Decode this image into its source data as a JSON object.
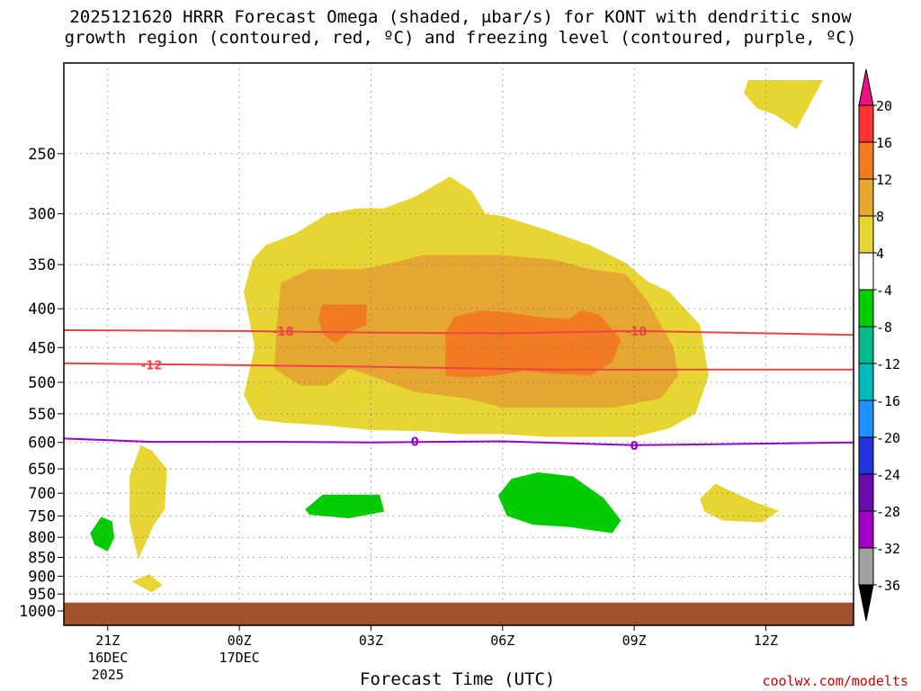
{
  "title": {
    "line1": "2025121620 HRRR Forecast Omega (shaded, μbar/s) for KONT with dendritic snow",
    "line2": "growth region (contoured, red, ºC) and freezing level (contoured, purple, ºC)"
  },
  "credit": "coolwx.com/modelts",
  "chart_data": {
    "type": "time-height cross section",
    "xlabel": "Forecast Time (UTC)",
    "x_ticks": [
      {
        "hour": 1,
        "label": "21Z",
        "sub1": "16DEC",
        "sub2": "2025"
      },
      {
        "hour": 4,
        "label": "00Z",
        "sub1": "17DEC",
        "sub2": ""
      },
      {
        "hour": 7,
        "label": "03Z",
        "sub1": "",
        "sub2": ""
      },
      {
        "hour": 10,
        "label": "06Z",
        "sub1": "",
        "sub2": ""
      },
      {
        "hour": 13,
        "label": "09Z",
        "sub1": "",
        "sub2": ""
      },
      {
        "hour": 16,
        "label": "12Z",
        "sub1": "",
        "sub2": ""
      }
    ],
    "x_range_hours": [
      0,
      18
    ],
    "y_axis": {
      "type": "log-pressure",
      "unit": "hPa",
      "range": [
        1000,
        200
      ]
    },
    "y_ticks": [
      250,
      300,
      350,
      400,
      450,
      500,
      550,
      600,
      650,
      700,
      750,
      800,
      850,
      900,
      950,
      1000
    ],
    "ground_level_hPa": 975,
    "ground_color": "#a0522d",
    "omega_legend": {
      "labels": [
        "20",
        "16",
        "12",
        "8",
        "4",
        "-4",
        "-8",
        "-12",
        "-16",
        "-20",
        "-24",
        "-28",
        "-32",
        "-36"
      ],
      "colors": [
        "#ff3333",
        "#f07b20",
        "#e6a632",
        "#e6d532",
        "#ffffff",
        "#00cc00",
        "#00bb88",
        "#00bbbb",
        "#1e90ff",
        "#2233dd",
        "#6a0dad",
        "#a000c8",
        "#a0a0a0"
      ],
      "top_arrow_color": "#ee1188",
      "bottom_arrow_color": "#000000"
    },
    "contours": [
      {
        "name": "dgz-minus-18",
        "label": "-18",
        "color": "#ee4444",
        "points": [
          [
            0,
            427
          ],
          [
            4,
            428
          ],
          [
            7,
            430
          ],
          [
            10,
            431
          ],
          [
            13,
            428
          ],
          [
            18,
            433
          ]
        ],
        "label_at": [
          [
            5,
            428
          ],
          [
            13.05,
            428
          ]
        ]
      },
      {
        "name": "dgz-minus-12",
        "label": "-12",
        "color": "#ee4444",
        "points": [
          [
            0,
            472
          ],
          [
            3,
            474
          ],
          [
            7,
            477
          ],
          [
            11,
            481
          ],
          [
            14,
            481
          ],
          [
            18,
            481
          ]
        ],
        "label_at": [
          [
            2,
            474
          ]
        ]
      },
      {
        "name": "freezing-level-0",
        "label": "0",
        "color": "#9900cc",
        "points": [
          [
            0,
            593
          ],
          [
            2,
            599
          ],
          [
            5,
            599
          ],
          [
            7,
            600
          ],
          [
            10,
            598
          ],
          [
            13,
            605
          ],
          [
            15,
            603
          ],
          [
            18,
            600
          ]
        ],
        "label_at": [
          [
            8,
            598
          ],
          [
            13,
            605
          ]
        ]
      }
    ],
    "omega_regions": [
      {
        "band": "4-8",
        "color": "#e6d532",
        "points": [
          [
            4.4,
            560
          ],
          [
            4.1,
            520
          ],
          [
            4.35,
            450
          ],
          [
            4.1,
            380
          ],
          [
            4.3,
            345
          ],
          [
            4.6,
            330
          ],
          [
            5.3,
            318
          ],
          [
            6,
            300
          ],
          [
            6.7,
            295
          ],
          [
            7.3,
            295
          ],
          [
            8,
            285
          ],
          [
            8.8,
            268
          ],
          [
            9.3,
            280
          ],
          [
            9.6,
            300
          ],
          [
            10,
            302
          ],
          [
            11,
            315
          ],
          [
            12,
            330
          ],
          [
            12.8,
            348
          ],
          [
            13.3,
            368
          ],
          [
            13.8,
            380
          ],
          [
            14.5,
            420
          ],
          [
            14.7,
            490
          ],
          [
            14.4,
            550
          ],
          [
            13.8,
            575
          ],
          [
            13,
            590
          ],
          [
            12,
            590
          ],
          [
            11,
            590
          ],
          [
            10,
            585
          ],
          [
            9,
            585
          ],
          [
            8.2,
            580
          ],
          [
            7,
            578
          ],
          [
            6,
            570
          ],
          [
            5,
            565
          ],
          [
            4.4,
            560
          ]
        ]
      },
      {
        "band": "8-12",
        "color": "#e6a632",
        "points": [
          [
            4.8,
            480
          ],
          [
            4.85,
            420
          ],
          [
            4.95,
            370
          ],
          [
            5.6,
            355
          ],
          [
            6.8,
            355
          ],
          [
            7.5,
            348
          ],
          [
            8.2,
            340
          ],
          [
            9.2,
            340
          ],
          [
            10,
            340
          ],
          [
            11.2,
            345
          ],
          [
            12,
            355
          ],
          [
            12.8,
            360
          ],
          [
            13.3,
            390
          ],
          [
            13.9,
            450
          ],
          [
            14,
            490
          ],
          [
            13.6,
            525
          ],
          [
            12.5,
            540
          ],
          [
            11,
            540
          ],
          [
            10,
            540
          ],
          [
            9.2,
            525
          ],
          [
            8,
            515
          ],
          [
            7,
            490
          ],
          [
            6.5,
            480
          ],
          [
            6,
            505
          ],
          [
            5.4,
            505
          ],
          [
            4.8,
            480
          ]
        ]
      },
      {
        "band": "12-16",
        "color": "#f07b20",
        "points": [
          [
            6.9,
            395
          ],
          [
            6.9,
            420
          ],
          [
            6.5,
            430
          ],
          [
            6.2,
            444
          ],
          [
            5.9,
            432
          ],
          [
            5.8,
            412
          ],
          [
            5.9,
            395
          ],
          [
            6.9,
            395
          ]
        ]
      },
      {
        "band": "12-16",
        "color": "#f07b20",
        "points": [
          [
            8.7,
            490
          ],
          [
            8.7,
            430
          ],
          [
            8.9,
            410
          ],
          [
            9.5,
            402
          ],
          [
            10.2,
            405
          ],
          [
            10.8,
            410
          ],
          [
            11.5,
            413
          ],
          [
            11.8,
            402
          ],
          [
            12.2,
            407
          ],
          [
            12.7,
            440
          ],
          [
            12.5,
            470
          ],
          [
            12,
            490
          ],
          [
            11.2,
            487
          ],
          [
            10.5,
            483
          ],
          [
            9.8,
            490
          ],
          [
            9.2,
            493
          ],
          [
            8.7,
            490
          ]
        ]
      },
      {
        "band": "4-8",
        "color": "#e6d532",
        "points": [
          [
            15.6,
            200
          ],
          [
            17.3,
            200
          ],
          [
            16.7,
            232
          ],
          [
            16.2,
            222
          ],
          [
            15.8,
            218
          ],
          [
            15.5,
            208
          ],
          [
            15.6,
            200
          ]
        ]
      },
      {
        "band": "4-8",
        "color": "#e6d532",
        "points": [
          [
            1.5,
            665
          ],
          [
            1.75,
            605
          ],
          [
            2.0,
            615
          ],
          [
            2.35,
            650
          ],
          [
            2.3,
            735
          ],
          [
            2.05,
            770
          ],
          [
            1.7,
            855
          ],
          [
            1.5,
            765
          ],
          [
            1.5,
            665
          ]
        ]
      },
      {
        "band": "4-8",
        "color": "#e6d532",
        "points": [
          [
            1.55,
            915
          ],
          [
            1.95,
            895
          ],
          [
            2.25,
            925
          ],
          [
            2.0,
            945
          ],
          [
            1.55,
            915
          ]
        ]
      },
      {
        "band": "4-8",
        "color": "#e6d532",
        "points": [
          [
            14.5,
            712
          ],
          [
            14.85,
            680
          ],
          [
            15.7,
            717
          ],
          [
            16.3,
            738
          ],
          [
            15.9,
            765
          ],
          [
            15,
            760
          ],
          [
            14.6,
            740
          ],
          [
            14.5,
            712
          ]
        ]
      },
      {
        "band": "-8 to -4",
        "color": "#00cc00",
        "points": [
          [
            5.5,
            735
          ],
          [
            5.9,
            703
          ],
          [
            7.2,
            703
          ],
          [
            7.3,
            740
          ],
          [
            6.5,
            755
          ],
          [
            5.6,
            747
          ],
          [
            5.5,
            735
          ]
        ]
      },
      {
        "band": "-8 to -4",
        "color": "#00cc00",
        "points": [
          [
            9.9,
            705
          ],
          [
            10.2,
            670
          ],
          [
            10.8,
            657
          ],
          [
            11.6,
            665
          ],
          [
            12.3,
            710
          ],
          [
            12.7,
            760
          ],
          [
            12.5,
            790
          ],
          [
            11.5,
            775
          ],
          [
            10.7,
            770
          ],
          [
            10.1,
            750
          ],
          [
            9.9,
            705
          ]
        ]
      },
      {
        "band": "-8 to -4",
        "color": "#00cc00",
        "points": [
          [
            0.6,
            790
          ],
          [
            0.85,
            752
          ],
          [
            1.1,
            762
          ],
          [
            1.15,
            800
          ],
          [
            1.0,
            835
          ],
          [
            0.7,
            818
          ],
          [
            0.6,
            790
          ]
        ]
      }
    ]
  }
}
